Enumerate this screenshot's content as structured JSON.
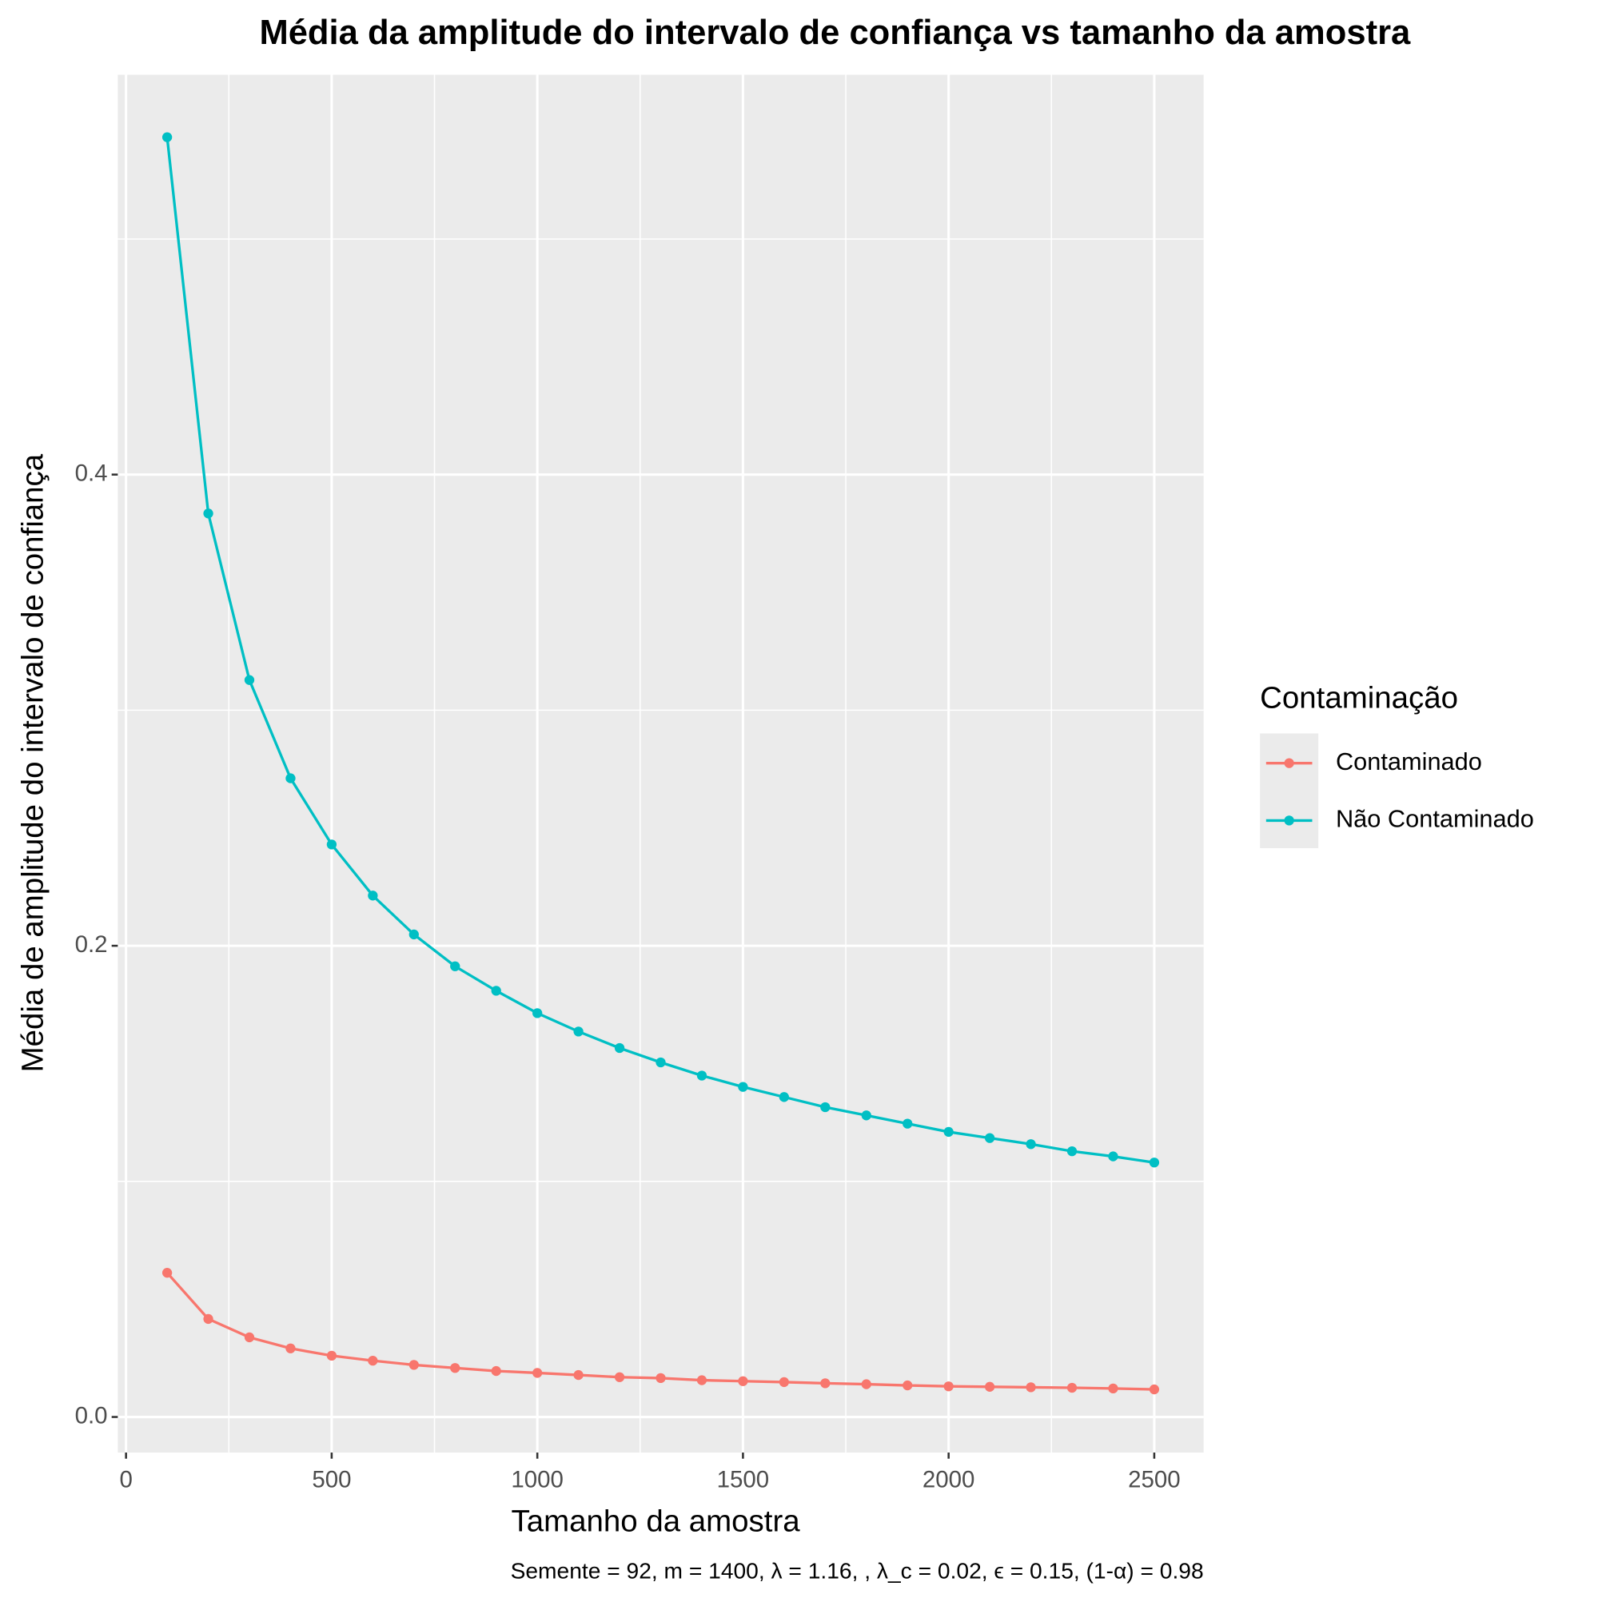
{
  "chart_data": {
    "type": "line",
    "title": "Média da amplitude do intervalo de confiança vs tamanho da amostra",
    "x_label": "Tamanho da amostra",
    "y_label": "Média de amplitude do intervalo de confiança",
    "caption": "Semente = 92, m = 1400, λ = 1.16, , λ_c = 0.02, ϵ = 0.15, (1-α) = 0.98",
    "legend_title": "Contaminação",
    "legend_position": "right",
    "grid": true,
    "x": [
      100,
      200,
      300,
      400,
      500,
      600,
      700,
      800,
      900,
      1000,
      1100,
      1200,
      1300,
      1400,
      1500,
      1600,
      1700,
      1800,
      1900,
      2000,
      2100,
      2200,
      2300,
      2400,
      2500
    ],
    "series": [
      {
        "name": "Contaminado",
        "color": "#f8766d",
        "values": [
          0.0612,
          0.0416,
          0.0338,
          0.0291,
          0.026,
          0.0239,
          0.0221,
          0.0208,
          0.0195,
          0.0187,
          0.0178,
          0.0169,
          0.0165,
          0.0156,
          0.0152,
          0.0148,
          0.0143,
          0.0139,
          0.0134,
          0.013,
          0.0128,
          0.0126,
          0.0124,
          0.0121,
          0.0117
        ]
      },
      {
        "name": "Não Contaminado",
        "color": "#00bfc4",
        "values": [
          0.5432,
          0.3835,
          0.3128,
          0.2711,
          0.243,
          0.2213,
          0.2048,
          0.1913,
          0.1809,
          0.1714,
          0.1636,
          0.1566,
          0.1505,
          0.1449,
          0.1401,
          0.1358,
          0.1315,
          0.128,
          0.1245,
          0.121,
          0.1184,
          0.1158,
          0.1128,
          0.1106,
          0.108
        ]
      }
    ],
    "xlim": [
      -20,
      2620
    ],
    "ylim": [
      -0.0151,
      0.5697
    ],
    "xticks": [
      0,
      500,
      1000,
      1500,
      2000,
      2500
    ],
    "yticks": [
      {
        "value": 0,
        "label": "0.0"
      },
      0.2,
      0.4
    ],
    "x_minor_ticks": [
      250,
      750,
      1250,
      1750,
      2250
    ],
    "y_minor_ticks": [
      0.1,
      0.3,
      0.5
    ]
  }
}
